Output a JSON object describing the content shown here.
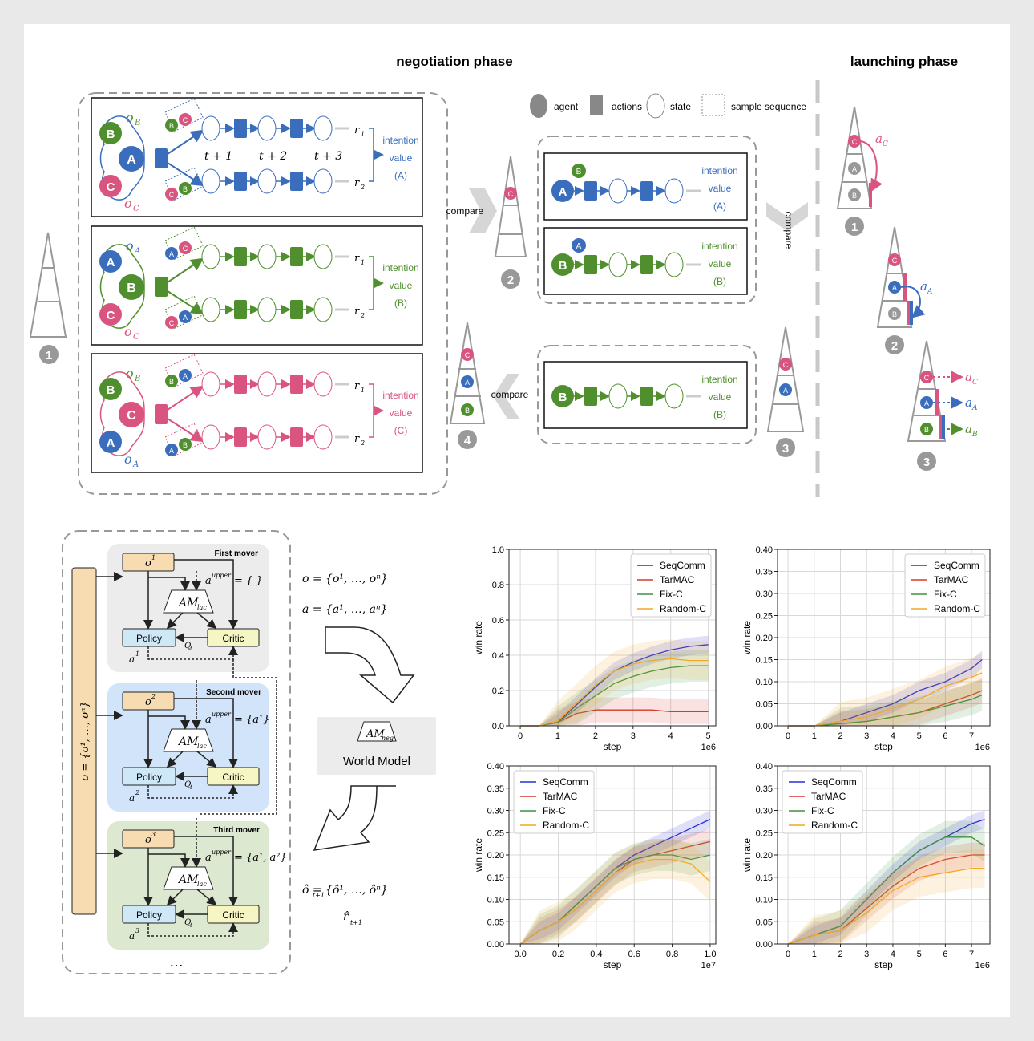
{
  "headings": {
    "negotiation": "negotiation phase",
    "launching": "launching phase"
  },
  "legend": {
    "agent": "agent",
    "actions": "actions",
    "state": "state",
    "sample": "sample sequence"
  },
  "labels": {
    "compare": "compare",
    "t1": "t + 1",
    "t2": "t + 2",
    "t3": "t + 3",
    "r1": "r",
    "r2": "r",
    "sub1": "1",
    "sub2": "2",
    "intention": "intention",
    "value": "value",
    "valA": "(A)",
    "valB": "(B)",
    "valC": "(C)",
    "oA": "o",
    "oB": "o",
    "oC": "o",
    "subA": "A",
    "subB": "B",
    "subC": "C",
    "aC": "a",
    "aA": "a",
    "aB": "a",
    "num1": "1",
    "num2": "2",
    "num3": "3",
    "num4": "4"
  },
  "agents": {
    "A": "A",
    "B": "B",
    "C": "C"
  },
  "colors": {
    "A": "#3a6ebd",
    "B": "#4f8f2e",
    "C": "#d9547e",
    "gray": "#9a9a9a"
  },
  "arch": {
    "movers": [
      "First mover",
      "Second mover",
      "Third mover"
    ],
    "obs": [
      "o",
      "o",
      "o"
    ],
    "obs_sup": [
      "1",
      "2",
      "3"
    ],
    "policy": "Policy",
    "critic": "Critic",
    "am_lac": "AM",
    "am_lac_sub": "lac",
    "Q": "Q",
    "Q_sub": "t",
    "upper": "a",
    "upper_sup": "upper",
    "upper_vals": [
      "= { }",
      "= {a¹}",
      "= {a¹, a²}"
    ],
    "a_out": [
      "1",
      "2",
      "3"
    ],
    "side_obs": "o = {o¹, …, oⁿ}",
    "dots": "…",
    "eq_o": "o = {o¹, …, oⁿ}",
    "eq_a": "a = {a¹, …, aⁿ}",
    "am_neg": "AM",
    "am_neg_sub": "neg",
    "world_model": "World Model",
    "eq_next": "ô = {ô¹, …, ôⁿ}",
    "eq_r": "r̂",
    "eq_r_sub": "t+1",
    "eq_next_sub": "t+1"
  },
  "chart_data": [
    {
      "type": "line",
      "xlabel": "step",
      "ylabel": "win rate",
      "ylim": [
        0,
        1.0
      ],
      "yticks": [
        "0.0",
        "0.2",
        "0.4",
        "0.6",
        "0.8",
        "1.0"
      ],
      "xticks": [
        "0",
        "1",
        "2",
        "3",
        "4",
        "5"
      ],
      "xlim": [
        -0.3,
        5.2
      ],
      "xscale": "1e6",
      "legend": [
        "SeqComm",
        "TarMAC",
        "Fix-C",
        "Random-C"
      ],
      "series": [
        {
          "name": "SeqComm",
          "x": [
            0,
            0.5,
            1,
            1.5,
            2,
            2.5,
            3,
            3.5,
            4,
            4.5,
            5
          ],
          "values": [
            0,
            0,
            0.02,
            0.12,
            0.22,
            0.31,
            0.36,
            0.4,
            0.43,
            0.45,
            0.46
          ]
        },
        {
          "name": "TarMAC",
          "x": [
            0,
            0.5,
            1,
            1.5,
            2,
            2.5,
            3,
            3.5,
            4,
            4.5,
            5
          ],
          "values": [
            0,
            0,
            0.02,
            0.07,
            0.09,
            0.09,
            0.09,
            0.09,
            0.08,
            0.08,
            0.08
          ]
        },
        {
          "name": "Fix-C",
          "x": [
            0,
            0.5,
            1,
            1.5,
            2,
            2.5,
            3,
            3.5,
            4,
            4.5,
            5
          ],
          "values": [
            0,
            0,
            0.02,
            0.1,
            0.17,
            0.24,
            0.28,
            0.31,
            0.33,
            0.34,
            0.34
          ]
        },
        {
          "name": "Random-C",
          "x": [
            0,
            0.5,
            1,
            1.5,
            2,
            2.5,
            3,
            3.5,
            4,
            4.5,
            5
          ],
          "values": [
            0,
            0,
            0.03,
            0.13,
            0.23,
            0.31,
            0.35,
            0.37,
            0.38,
            0.37,
            0.37
          ]
        }
      ]
    },
    {
      "type": "line",
      "xlabel": "step",
      "ylabel": "win rate",
      "ylim": [
        0,
        0.4
      ],
      "yticks": [
        "0.00",
        "0.05",
        "0.10",
        "0.15",
        "0.20",
        "0.25",
        "0.30",
        "0.35",
        "0.40"
      ],
      "xticks": [
        "0",
        "1",
        "2",
        "3",
        "4",
        "5",
        "6",
        "7"
      ],
      "xlim": [
        -0.4,
        7.7
      ],
      "xscale": "1e6",
      "legend": [
        "SeqComm",
        "TarMAC",
        "Fix-C",
        "Random-C"
      ],
      "series": [
        {
          "name": "SeqComm",
          "x": [
            0,
            1,
            2,
            3,
            4,
            5,
            6,
            7,
            7.4
          ],
          "values": [
            0,
            0,
            0.01,
            0.03,
            0.05,
            0.08,
            0.1,
            0.13,
            0.15
          ]
        },
        {
          "name": "TarMAC",
          "x": [
            0,
            1,
            2,
            3,
            4,
            5,
            6,
            7,
            7.4
          ],
          "values": [
            0,
            0,
            0.005,
            0.01,
            0.02,
            0.03,
            0.05,
            0.07,
            0.08
          ]
        },
        {
          "name": "Fix-C",
          "x": [
            0,
            1,
            2,
            3,
            4,
            5,
            6,
            7,
            7.4
          ],
          "values": [
            0,
            0,
            0.005,
            0.01,
            0.02,
            0.03,
            0.045,
            0.06,
            0.07
          ]
        },
        {
          "name": "Random-C",
          "x": [
            0,
            1,
            2,
            3,
            4,
            5,
            6,
            7,
            7.4
          ],
          "values": [
            0,
            0,
            0.01,
            0.02,
            0.04,
            0.06,
            0.09,
            0.11,
            0.12
          ]
        }
      ]
    },
    {
      "type": "line",
      "xlabel": "step",
      "ylabel": "win rate",
      "ylim": [
        0,
        0.4
      ],
      "yticks": [
        "0.00",
        "0.05",
        "0.10",
        "0.15",
        "0.20",
        "0.25",
        "0.30",
        "0.35",
        "0.40"
      ],
      "xticks": [
        "0.0",
        "0.2",
        "0.4",
        "0.6",
        "0.8",
        "1.0"
      ],
      "xlim": [
        -0.06,
        1.03
      ],
      "xscale": "1e7",
      "legend": [
        "SeqComm",
        "TarMAC",
        "Fix-C",
        "Random-C"
      ],
      "series": [
        {
          "name": "SeqComm",
          "x": [
            0,
            0.1,
            0.2,
            0.3,
            0.4,
            0.5,
            0.6,
            0.7,
            0.8,
            0.9,
            1.0
          ],
          "values": [
            0,
            0.03,
            0.05,
            0.09,
            0.13,
            0.17,
            0.2,
            0.22,
            0.24,
            0.26,
            0.28
          ]
        },
        {
          "name": "TarMAC",
          "x": [
            0,
            0.1,
            0.2,
            0.3,
            0.4,
            0.5,
            0.6,
            0.7,
            0.8,
            0.9,
            1.0
          ],
          "values": [
            0,
            0.03,
            0.05,
            0.08,
            0.12,
            0.16,
            0.19,
            0.2,
            0.21,
            0.22,
            0.23
          ]
        },
        {
          "name": "Fix-C",
          "x": [
            0,
            0.1,
            0.2,
            0.3,
            0.4,
            0.5,
            0.6,
            0.7,
            0.8,
            0.9,
            1.0
          ],
          "values": [
            0,
            0.03,
            0.05,
            0.09,
            0.13,
            0.17,
            0.19,
            0.2,
            0.2,
            0.19,
            0.2
          ]
        },
        {
          "name": "Random-C",
          "x": [
            0,
            0.1,
            0.2,
            0.3,
            0.4,
            0.5,
            0.6,
            0.7,
            0.8,
            0.9,
            1.0
          ],
          "values": [
            0,
            0.03,
            0.05,
            0.08,
            0.12,
            0.16,
            0.18,
            0.19,
            0.19,
            0.18,
            0.14
          ]
        }
      ]
    },
    {
      "type": "line",
      "xlabel": "step",
      "ylabel": "win rate",
      "ylim": [
        0,
        0.4
      ],
      "yticks": [
        "0.00",
        "0.05",
        "0.10",
        "0.15",
        "0.20",
        "0.25",
        "0.30",
        "0.35",
        "0.40"
      ],
      "xticks": [
        "0",
        "1",
        "2",
        "3",
        "4",
        "5",
        "6",
        "7"
      ],
      "xlim": [
        -0.4,
        7.7
      ],
      "xscale": "1e6",
      "legend": [
        "SeqComm",
        "TarMAC",
        "Fix-C",
        "Random-C"
      ],
      "series": [
        {
          "name": "SeqComm",
          "x": [
            0,
            1,
            2,
            3,
            4,
            5,
            6,
            7,
            7.5
          ],
          "values": [
            0,
            0.02,
            0.04,
            0.1,
            0.16,
            0.21,
            0.24,
            0.27,
            0.28
          ]
        },
        {
          "name": "TarMAC",
          "x": [
            0,
            1,
            2,
            3,
            4,
            5,
            6,
            7,
            7.5
          ],
          "values": [
            0,
            0.02,
            0.03,
            0.08,
            0.13,
            0.17,
            0.19,
            0.2,
            0.2
          ]
        },
        {
          "name": "Fix-C",
          "x": [
            0,
            1,
            2,
            3,
            4,
            5,
            6,
            7,
            7.5
          ],
          "values": [
            0,
            0.02,
            0.04,
            0.1,
            0.16,
            0.21,
            0.24,
            0.24,
            0.22
          ]
        },
        {
          "name": "Random-C",
          "x": [
            0,
            1,
            2,
            3,
            4,
            5,
            6,
            7,
            7.5
          ],
          "values": [
            0,
            0.02,
            0.03,
            0.07,
            0.12,
            0.15,
            0.16,
            0.17,
            0.17
          ]
        }
      ]
    }
  ],
  "series_colors": {
    "SeqComm": "#2b2bd6",
    "TarMAC": "#d63b2b",
    "Fix-C": "#3f9140",
    "Random-C": "#f0a92b"
  }
}
